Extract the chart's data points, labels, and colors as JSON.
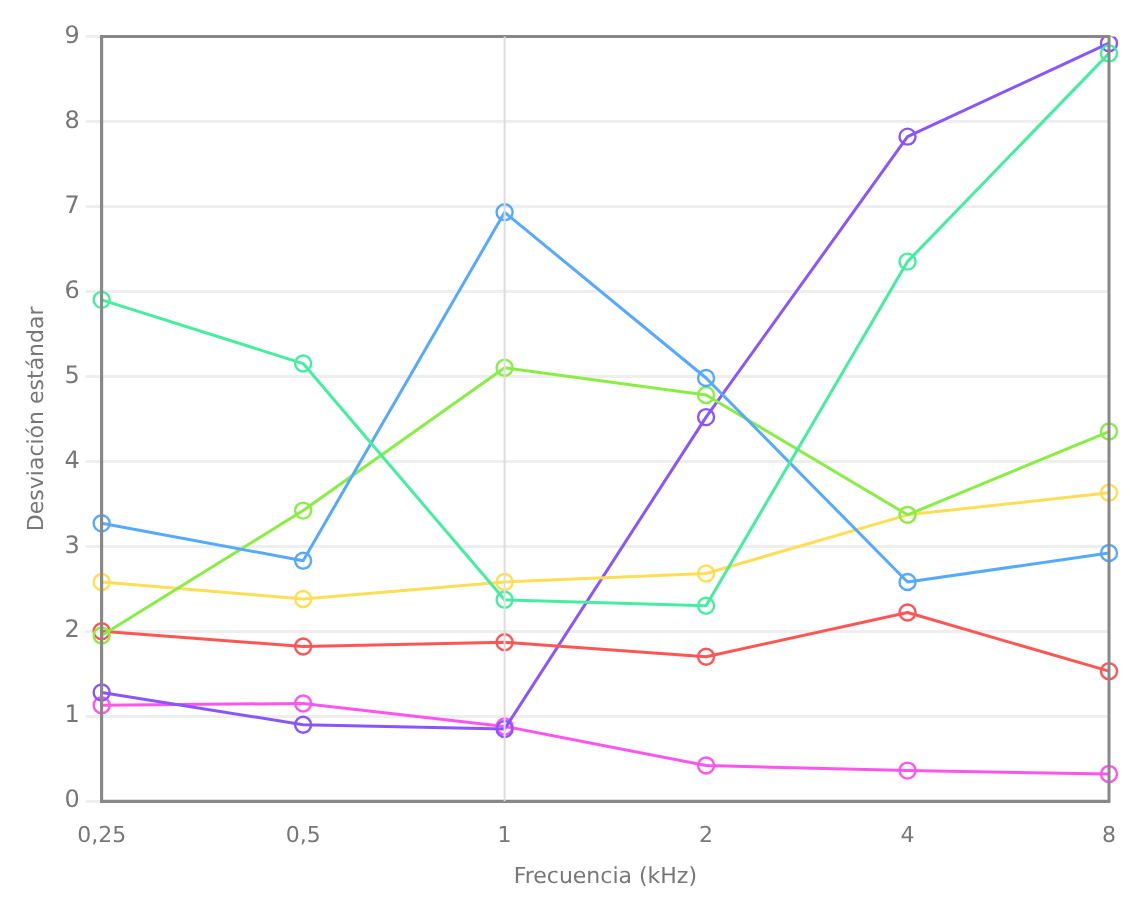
{
  "chart_data": {
    "type": "line",
    "xlabel": "Frecuencia (kHz)",
    "ylabel": "Desviación estándar",
    "categories": [
      "0,25",
      "0,5",
      "1",
      "2",
      "4",
      "8"
    ],
    "ylim": [
      0,
      9
    ],
    "yticks": [
      0,
      1,
      2,
      3,
      4,
      5,
      6,
      7,
      8,
      9
    ],
    "grid": "y",
    "legend": false,
    "marker": "circle",
    "line_style": "solid",
    "ref_lines": [
      {
        "axis": "x",
        "value": "1",
        "color": "#dddddd"
      }
    ],
    "series": [
      {
        "color": "#44eea0",
        "values": [
          5.9,
          5.15,
          2.37,
          2.3,
          6.35,
          8.8
        ]
      },
      {
        "color": "#55aaff",
        "values": [
          3.27,
          2.83,
          6.93,
          4.98,
          2.58,
          2.92
        ]
      },
      {
        "color": "#88ee44",
        "values": [
          1.95,
          3.42,
          5.1,
          4.78,
          3.37,
          4.35
        ]
      },
      {
        "color": "#ffdd55",
        "values": [
          2.58,
          2.38,
          2.58,
          2.68,
          3.37,
          3.63
        ]
      },
      {
        "color": "#ff5555",
        "values": [
          2.0,
          1.82,
          1.87,
          1.7,
          2.22,
          1.53
        ]
      },
      {
        "color": "#8855ff",
        "values": [
          1.28,
          0.9,
          0.85,
          4.52,
          7.82,
          8.92
        ]
      },
      {
        "color": "#ff55ee",
        "values": [
          1.13,
          1.15,
          0.88,
          0.42,
          0.36,
          0.32
        ]
      }
    ]
  }
}
